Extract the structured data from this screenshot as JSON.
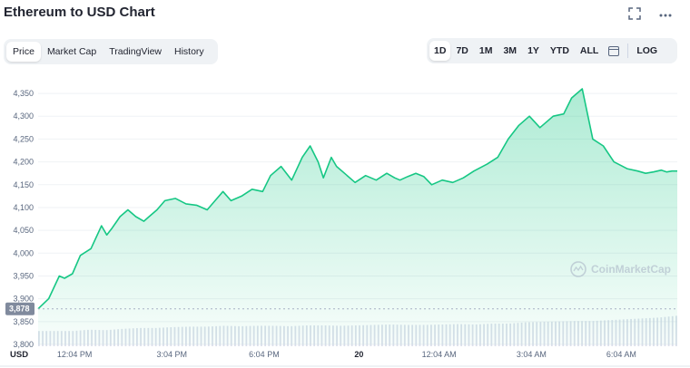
{
  "header": {
    "title": "Ethereum to USD Chart",
    "expand_icon": "expand-icon",
    "more_icon": "more-icon"
  },
  "view_tabs": [
    {
      "label": "Price",
      "active": true
    },
    {
      "label": "Market Cap",
      "active": false
    },
    {
      "label": "TradingView",
      "active": false
    },
    {
      "label": "History",
      "active": false
    }
  ],
  "range_tabs": [
    {
      "label": "1D",
      "active": true
    },
    {
      "label": "7D",
      "active": false
    },
    {
      "label": "1M",
      "active": false
    },
    {
      "label": "3M",
      "active": false
    },
    {
      "label": "1Y",
      "active": false
    },
    {
      "label": "YTD",
      "active": false
    },
    {
      "label": "ALL",
      "active": false
    }
  ],
  "calendar_icon": "calendar-icon",
  "log_label": "LOG",
  "watermark": "CoinMarketCap",
  "currency_label": "USD",
  "current_price_tag": "3,878",
  "colors": {
    "line": "#16c784",
    "fill_top": "#16c784",
    "volume": "#cfd6e4",
    "price_tag_bg": "#808a9d"
  },
  "chart_data": {
    "type": "area",
    "ylim": [
      3800,
      4370
    ],
    "y_ticks": [
      "3,800",
      "3,850",
      "3,900",
      "3,950",
      "4,000",
      "4,050",
      "4,100",
      "4,150",
      "4,200",
      "4,250",
      "4,300",
      "4,350"
    ],
    "x_ticks": [
      "12:04 PM",
      "3:04 PM",
      "6:04 PM",
      "20",
      "12:04 AM",
      "3:04 AM",
      "6:04 AM"
    ],
    "series": [
      {
        "x_hours": [
          0,
          0.4,
          0.8,
          1.0,
          1.3,
          1.6,
          2.0,
          2.4,
          2.6,
          2.8,
          3.1,
          3.4,
          3.7,
          4.0,
          4.2,
          4.5,
          4.8,
          5.2,
          5.6,
          6.0,
          6.4,
          6.7,
          7.0,
          7.3,
          7.7,
          8.1,
          8.5,
          8.8,
          9.2,
          9.6,
          10.0,
          10.3,
          10.6,
          10.8,
          11.1,
          11.3,
          11.6,
          12.0,
          12.4,
          12.8,
          13.2,
          13.5,
          13.7,
          14.0,
          14.3,
          14.6,
          14.9,
          15.3,
          15.7,
          16.1,
          16.5,
          17.0,
          17.4,
          17.8,
          18.2,
          18.6,
          19.0,
          19.5,
          19.9,
          20.2,
          20.6,
          21.0,
          21.4,
          21.8,
          22.3,
          22.7,
          23.0,
          23.3,
          23.6,
          23.8,
          24.0,
          24.2
        ],
        "values": [
          3878,
          3900,
          3950,
          3945,
          3955,
          3995,
          4010,
          4060,
          4040,
          4055,
          4080,
          4095,
          4080,
          4070,
          4080,
          4095,
          4115,
          4120,
          4108,
          4105,
          4095,
          4115,
          4135,
          4115,
          4125,
          4140,
          4135,
          4170,
          4190,
          4160,
          4210,
          4235,
          4200,
          4165,
          4210,
          4190,
          4175,
          4155,
          4170,
          4160,
          4175,
          4165,
          4160,
          4168,
          4175,
          4168,
          4150,
          4160,
          4155,
          4165,
          4180,
          4195,
          4210,
          4250,
          4280,
          4300,
          4275,
          4300,
          4305,
          4340,
          4360,
          4250,
          4235,
          4200,
          4185,
          4180,
          4175,
          4178,
          4182,
          4178,
          4180,
          4180
        ]
      }
    ],
    "volume": [
      0.35,
      0.35,
      0.35,
      0.38,
      0.37,
      0.4,
      0.42,
      0.42,
      0.44,
      0.45,
      0.45,
      0.47,
      0.46,
      0.47,
      0.47,
      0.46,
      0.48,
      0.48,
      0.47,
      0.48,
      0.49,
      0.5,
      0.49,
      0.49,
      0.5,
      0.51,
      0.5,
      0.52,
      0.52,
      0.55,
      0.56,
      0.57,
      0.58,
      0.58,
      0.6,
      0.62,
      0.64,
      0.66,
      0.7
    ]
  }
}
